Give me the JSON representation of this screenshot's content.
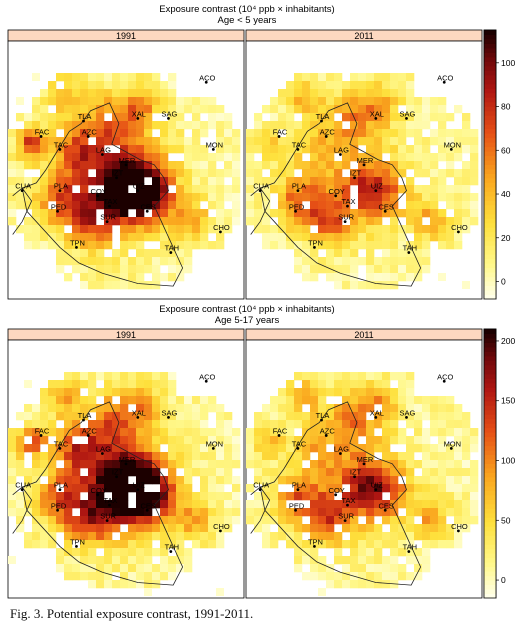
{
  "figure": {
    "caption": "Fig. 3. Potential exposure contrast, 1991-2011."
  },
  "chart_data": [
    {
      "type": "heatmap",
      "title": "Exposure contrast (10⁴ ppb × inhabitants)",
      "subtitle": "Age < 5 years",
      "panels": [
        "1991",
        "2011"
      ],
      "colorbar": {
        "ticks": [
          0,
          20,
          40,
          60,
          80,
          100
        ],
        "range": [
          -8,
          115
        ]
      },
      "hotspot_level": {
        "1991": 105,
        "2011": 55
      },
      "stations": [
        "ACO",
        "TLA",
        "XAL",
        "SAG",
        "FAC",
        "AZC",
        "TAC",
        "MON",
        "LAG",
        "MER",
        "IZT",
        "CUA",
        "PLA",
        "COY",
        "UIZ",
        "TAX",
        "PED",
        "CES",
        "SUR",
        "CHO",
        "TPN",
        "TAH"
      ]
    },
    {
      "type": "heatmap",
      "title": "Exposure contrast (10⁴ ppb × inhabitants)",
      "subtitle": "Age 5-17 years",
      "panels": [
        "1991",
        "2011"
      ],
      "colorbar": {
        "ticks": [
          0,
          50,
          100,
          150,
          200
        ],
        "range": [
          -15,
          210
        ]
      },
      "hotspot_level": {
        "1991": 205,
        "2011": 120
      },
      "stations": [
        "ACO",
        "TLA",
        "XAL",
        "SAG",
        "FAC",
        "AZC",
        "TAC",
        "MON",
        "LAG",
        "MER",
        "IZT",
        "CUA",
        "PLA",
        "COY",
        "UIZ",
        "TAX",
        "PED",
        "CES",
        "SUR",
        "CHO",
        "TPN",
        "TAH"
      ]
    }
  ]
}
